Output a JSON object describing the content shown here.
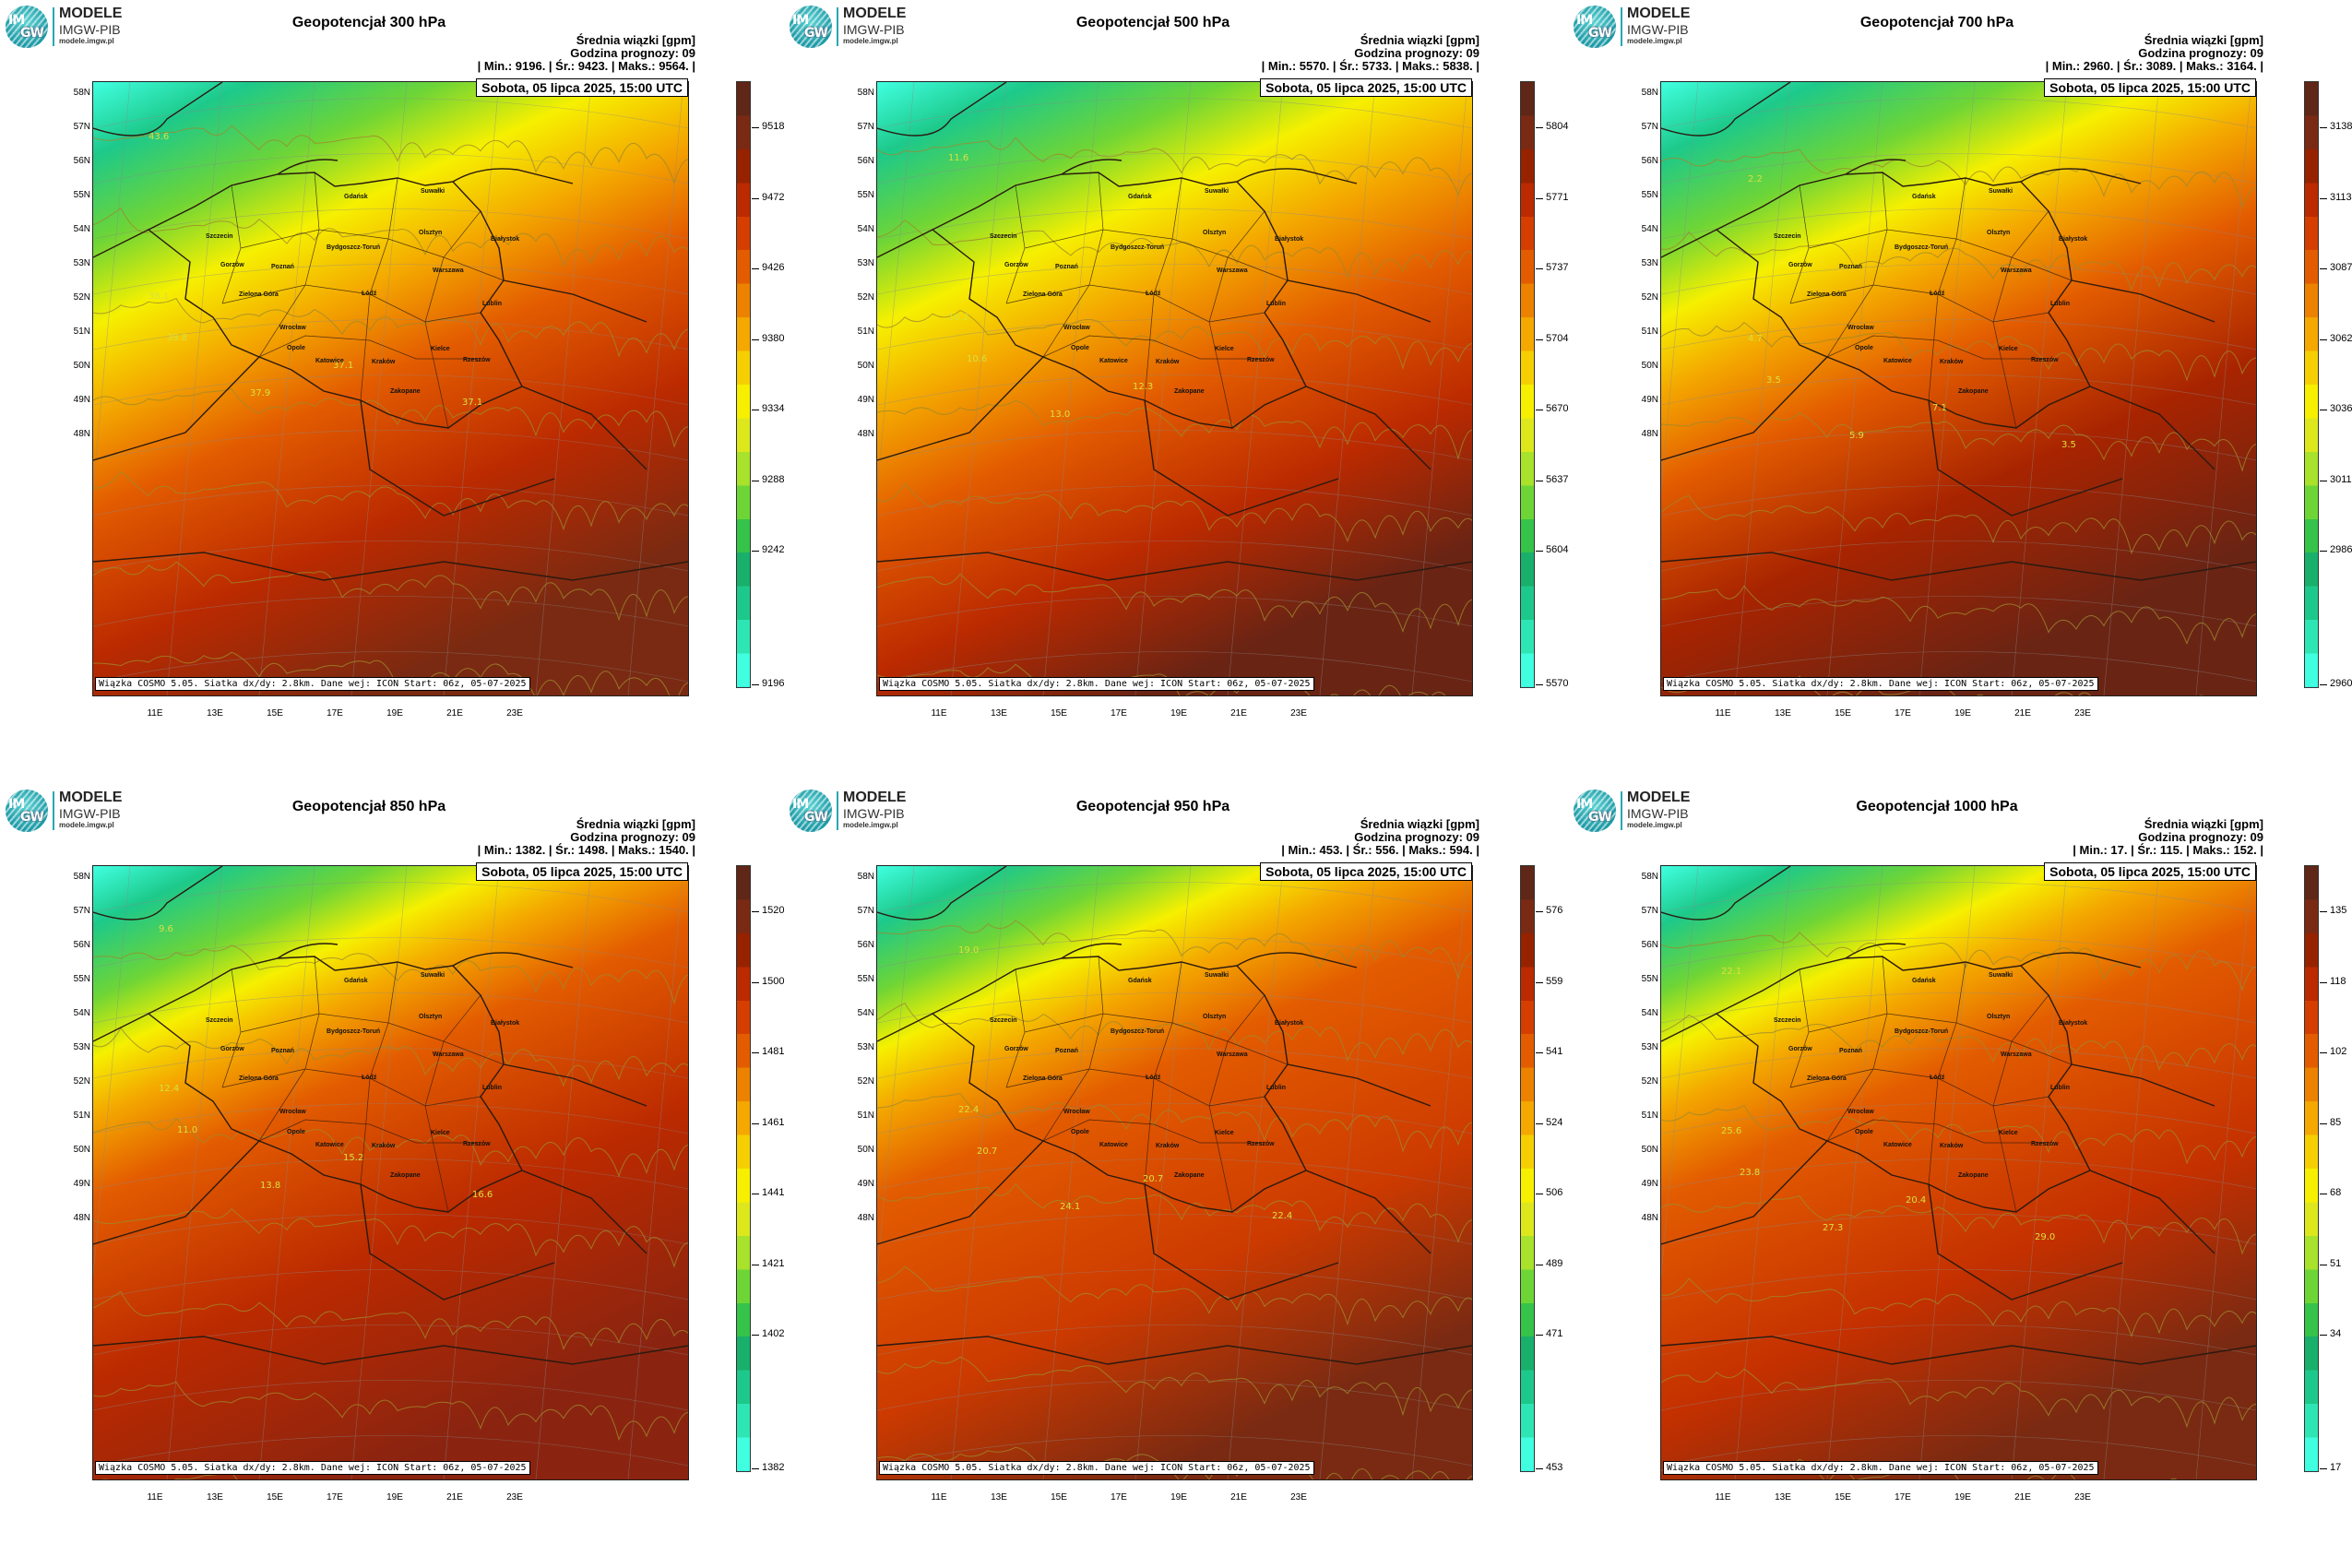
{
  "brand": {
    "title": "MODELE",
    "subtitle": "IMGW-PIB",
    "url": "modele.imgw.pl",
    "logo_im": "IM",
    "logo_gw": "GW"
  },
  "common": {
    "header_line1": "Średnia wiązki [gpm]",
    "header_line2": "Godzina prognozy: 09",
    "date_label": "Sobota, 05 lipca 2025, 15:00 UTC",
    "footer": "Wiązka COSMO 5.05. Siatka dx/dy: 2.8km. Dane wej: ICON Start: 06z, 05-07-2025",
    "lat_labels": [
      "58N",
      "57N",
      "56N",
      "55N",
      "54N",
      "53N",
      "52N",
      "51N",
      "50N",
      "49N",
      "48N"
    ],
    "lon_labels": [
      "11E",
      "13E",
      "15E",
      "17E",
      "19E",
      "21E",
      "23E"
    ],
    "cities": [
      "Gdańsk",
      "Suwałki",
      "Olsztyn",
      "Szczecin",
      "Białystok",
      "Bydgoszcz-Toruń",
      "Gorzów",
      "Poznań",
      "Warszawa",
      "Zielona Góra",
      "Łódź",
      "Lublin",
      "Wrocław",
      "Opole",
      "Kielce",
      "Katowice",
      "Kraków",
      "Rzeszów",
      "Zakopane"
    ]
  },
  "colors": {
    "scale": [
      "#40ffe0",
      "#2ee6b4",
      "#1dc98a",
      "#18b06a",
      "#35c34a",
      "#6ed536",
      "#a9e22a",
      "#dde81c",
      "#f6f000",
      "#f6cf00",
      "#f4a800",
      "#ec8200",
      "#e35c00",
      "#d63e00",
      "#bb2a00",
      "#962200",
      "#7a2a12",
      "#602616"
    ],
    "contour": "#9e8a2e",
    "border": "#2a1a10"
  },
  "panels": [
    {
      "title": "Geopotencjał 300 hPa",
      "stats": "| Min.:    9196. | Śr.:    9423. | Maks.:    9564. |",
      "colorbar": [
        "9518",
        "9472",
        "9426",
        "9380",
        "9334",
        "9288",
        "9242",
        "9196"
      ],
      "contours": [
        "43.6",
        "39.8",
        "38.1",
        "37.9",
        "37.1",
        "37.1"
      ]
    },
    {
      "title": "Geopotencjał 500 hPa",
      "stats": "| Min.:    5570. | Śr.:    5733. | Maks.:    5838. |",
      "colorbar": [
        "5804",
        "5771",
        "5737",
        "5704",
        "5670",
        "5637",
        "5604",
        "5570"
      ],
      "contours": [
        "11.6",
        "10.6",
        "10.2",
        "13.0",
        "12.3"
      ]
    },
    {
      "title": "Geopotencjał 700 hPa",
      "stats": "| Min.:    2960. | Śr.:    3089. | Maks.:    3164. |",
      "colorbar": [
        "3138",
        "3113",
        "3087",
        "3062",
        "3036",
        "3011",
        "2986",
        "2960"
      ],
      "contours": [
        "2.2",
        "3.5",
        "4.7",
        "5.9",
        "7.1",
        "3.5"
      ]
    },
    {
      "title": "Geopotencjał 850 hPa",
      "stats": "| Min.:    1382. | Śr.:    1498. | Maks.:    1540. |",
      "colorbar": [
        "1520",
        "1500",
        "1481",
        "1461",
        "1441",
        "1421",
        "1402",
        "1382"
      ],
      "contours": [
        "9.6",
        "11.0",
        "12.4",
        "13.8",
        "15.2",
        "16.6"
      ]
    },
    {
      "title": "Geopotencjał 950 hPa",
      "stats": "| Min.:     453. | Śr.:     556. | Maks.:     594. |",
      "colorbar": [
        "576",
        "559",
        "541",
        "524",
        "506",
        "489",
        "471",
        "453"
      ],
      "contours": [
        "19.0",
        "20.7",
        "22.4",
        "24.1",
        "20.7",
        "22.4"
      ]
    },
    {
      "title": "Geopotencjał 1000 hPa",
      "stats": "| Min.:      17. | Śr.:     115. | Maks.:     152. |",
      "colorbar": [
        "135",
        "118",
        "102",
        "85",
        "68",
        "51",
        "34",
        "17"
      ],
      "contours": [
        "22.1",
        "23.8",
        "25.6",
        "27.3",
        "20.4",
        "29.0"
      ]
    }
  ]
}
